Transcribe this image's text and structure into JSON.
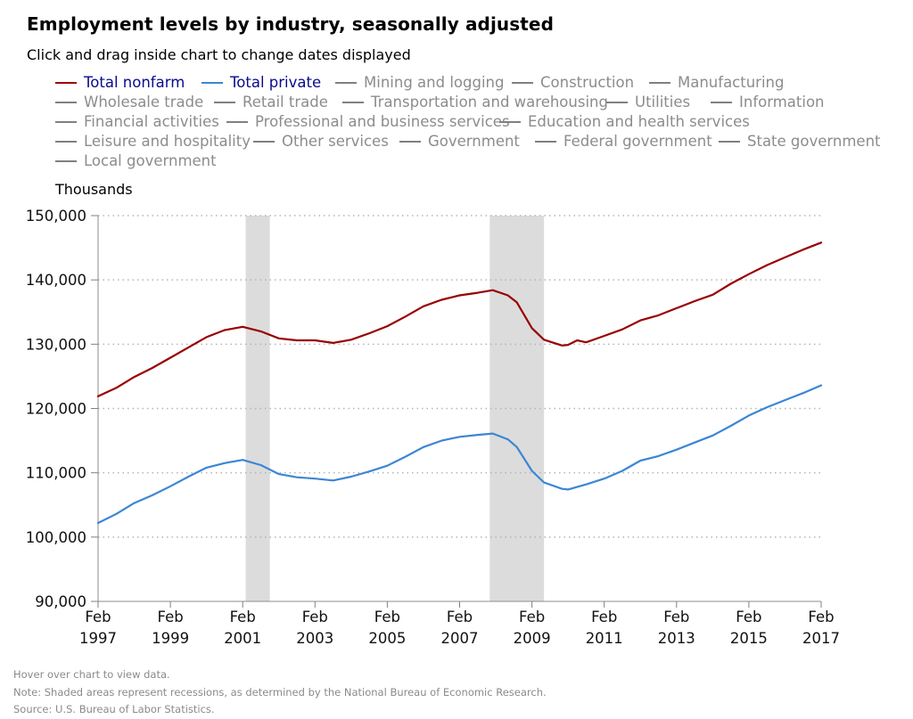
{
  "title": "Employment levels by industry, seasonally adjusted",
  "subtitle": "Click and drag inside chart to change dates displayed",
  "legend": [
    {
      "label": "Total nonfarm",
      "color": "#990000",
      "active": true
    },
    {
      "label": "Total private",
      "color": "#3c86d4",
      "active": true
    },
    {
      "label": "Mining and logging",
      "color": "#808080",
      "active": false
    },
    {
      "label": "Construction",
      "color": "#808080",
      "active": false
    },
    {
      "label": "Manufacturing",
      "color": "#808080",
      "active": false
    },
    {
      "label": "Wholesale trade",
      "color": "#808080",
      "active": false
    },
    {
      "label": "Retail trade",
      "color": "#808080",
      "active": false
    },
    {
      "label": "Transportation and warehousing",
      "color": "#808080",
      "active": false
    },
    {
      "label": "Utilities",
      "color": "#808080",
      "active": false
    },
    {
      "label": "Information",
      "color": "#808080",
      "active": false
    },
    {
      "label": "Financial activities",
      "color": "#808080",
      "active": false
    },
    {
      "label": "Professional and business services",
      "color": "#808080",
      "active": false
    },
    {
      "label": "Education and health services",
      "color": "#808080",
      "active": false
    },
    {
      "label": "Leisure and hospitality",
      "color": "#808080",
      "active": false
    },
    {
      "label": "Other services",
      "color": "#808080",
      "active": false
    },
    {
      "label": "Government",
      "color": "#808080",
      "active": false
    },
    {
      "label": "Federal government",
      "color": "#808080",
      "active": false
    },
    {
      "label": "State government",
      "color": "#808080",
      "active": false
    },
    {
      "label": "Local government",
      "color": "#808080",
      "active": false
    }
  ],
  "notes": {
    "hover": "Hover over chart to view data.",
    "note": "Note: Shaded areas represent recessions, as determined by the National Bureau of Economic Research.",
    "source": "Source: U.S. Bureau of Labor Statistics."
  },
  "chart_data": {
    "type": "line",
    "ylabel": "Thousands",
    "ylim": [
      90000,
      150000
    ],
    "y_ticks": [
      90000,
      100000,
      110000,
      120000,
      130000,
      140000,
      150000
    ],
    "y_tick_labels": [
      "90,000",
      "100,000",
      "110,000",
      "120,000",
      "130,000",
      "140,000",
      "150,000"
    ],
    "xlim": [
      "1997-02",
      "2017-02"
    ],
    "x_ticks": [
      "1997-02",
      "1999-02",
      "2001-02",
      "2003-02",
      "2005-02",
      "2007-02",
      "2009-02",
      "2011-02",
      "2013-02",
      "2015-02",
      "2017-02"
    ],
    "x_tick_labels": [
      [
        "Feb",
        "1997"
      ],
      [
        "Feb",
        "1999"
      ],
      [
        "Feb",
        "2001"
      ],
      [
        "Feb",
        "2003"
      ],
      [
        "Feb",
        "2005"
      ],
      [
        "Feb",
        "2007"
      ],
      [
        "Feb",
        "2009"
      ],
      [
        "Feb",
        "2011"
      ],
      [
        "Feb",
        "2013"
      ],
      [
        "Feb",
        "2015"
      ],
      [
        "Feb",
        "2017"
      ]
    ],
    "grid": "horizontal-dotted",
    "recessions": [
      [
        "2001-03",
        "2001-11"
      ],
      [
        "2007-12",
        "2009-06"
      ]
    ],
    "recession_color": "#dcdcdc",
    "series": [
      {
        "name": "Total nonfarm",
        "color": "#990000",
        "points": [
          [
            "1997-02",
            121900
          ],
          [
            "1997-08",
            123200
          ],
          [
            "1998-02",
            124900
          ],
          [
            "1998-08",
            126300
          ],
          [
            "1999-02",
            127900
          ],
          [
            "1999-08",
            129500
          ],
          [
            "2000-02",
            131100
          ],
          [
            "2000-08",
            132200
          ],
          [
            "2001-02",
            132700
          ],
          [
            "2001-08",
            132000
          ],
          [
            "2002-02",
            130900
          ],
          [
            "2002-08",
            130600
          ],
          [
            "2003-02",
            130600
          ],
          [
            "2003-08",
            130200
          ],
          [
            "2004-02",
            130700
          ],
          [
            "2004-08",
            131700
          ],
          [
            "2005-02",
            132800
          ],
          [
            "2005-08",
            134300
          ],
          [
            "2006-02",
            135900
          ],
          [
            "2006-08",
            136900
          ],
          [
            "2007-02",
            137600
          ],
          [
            "2007-08",
            138000
          ],
          [
            "2008-01",
            138400
          ],
          [
            "2008-06",
            137600
          ],
          [
            "2008-09",
            136500
          ],
          [
            "2009-02",
            132500
          ],
          [
            "2009-06",
            130700
          ],
          [
            "2009-12",
            129800
          ],
          [
            "2010-02",
            129900
          ],
          [
            "2010-05",
            130600
          ],
          [
            "2010-08",
            130300
          ],
          [
            "2011-02",
            131300
          ],
          [
            "2011-08",
            132300
          ],
          [
            "2012-02",
            133700
          ],
          [
            "2012-08",
            134500
          ],
          [
            "2013-02",
            135600
          ],
          [
            "2013-08",
            136700
          ],
          [
            "2014-02",
            137700
          ],
          [
            "2014-08",
            139400
          ],
          [
            "2015-02",
            140900
          ],
          [
            "2015-08",
            142300
          ],
          [
            "2016-02",
            143500
          ],
          [
            "2016-08",
            144700
          ],
          [
            "2017-02",
            145800
          ]
        ]
      },
      {
        "name": "Total private",
        "color": "#3c86d4",
        "points": [
          [
            "1997-02",
            102200
          ],
          [
            "1997-08",
            103600
          ],
          [
            "1998-02",
            105300
          ],
          [
            "1998-08",
            106500
          ],
          [
            "1999-02",
            107900
          ],
          [
            "1999-08",
            109400
          ],
          [
            "2000-02",
            110800
          ],
          [
            "2000-08",
            111500
          ],
          [
            "2001-02",
            112000
          ],
          [
            "2001-08",
            111200
          ],
          [
            "2002-02",
            109800
          ],
          [
            "2002-08",
            109300
          ],
          [
            "2003-02",
            109100
          ],
          [
            "2003-08",
            108800
          ],
          [
            "2004-02",
            109400
          ],
          [
            "2004-08",
            110200
          ],
          [
            "2005-02",
            111100
          ],
          [
            "2005-08",
            112500
          ],
          [
            "2006-02",
            114000
          ],
          [
            "2006-08",
            115000
          ],
          [
            "2007-02",
            115600
          ],
          [
            "2007-08",
            115900
          ],
          [
            "2008-01",
            116100
          ],
          [
            "2008-06",
            115200
          ],
          [
            "2008-09",
            114000
          ],
          [
            "2009-02",
            110300
          ],
          [
            "2009-06",
            108500
          ],
          [
            "2009-12",
            107500
          ],
          [
            "2010-02",
            107400
          ],
          [
            "2010-08",
            108200
          ],
          [
            "2011-02",
            109100
          ],
          [
            "2011-08",
            110300
          ],
          [
            "2012-02",
            111900
          ],
          [
            "2012-08",
            112600
          ],
          [
            "2013-02",
            113600
          ],
          [
            "2013-08",
            114700
          ],
          [
            "2014-02",
            115800
          ],
          [
            "2014-08",
            117300
          ],
          [
            "2015-02",
            118900
          ],
          [
            "2015-08",
            120200
          ],
          [
            "2016-02",
            121300
          ],
          [
            "2016-08",
            122400
          ],
          [
            "2017-02",
            123600
          ]
        ]
      }
    ]
  }
}
